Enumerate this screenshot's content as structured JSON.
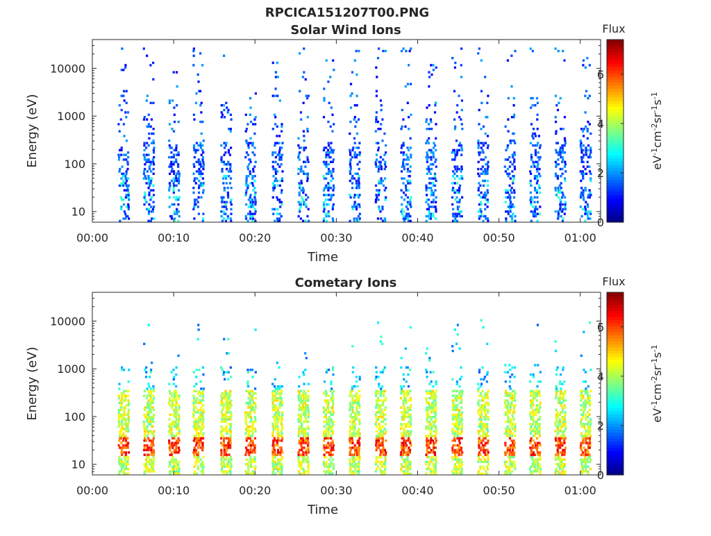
{
  "figure_title": "RPCICA151207T00.PNG",
  "chart_data": [
    {
      "type": "heatmap",
      "title": "Solar Wind Ions",
      "xlabel": "Time",
      "ylabel": "Energy (eV)",
      "x_ticks": [
        "00:00",
        "00:10",
        "00:20",
        "00:30",
        "00:40",
        "00:50",
        "01:00"
      ],
      "xlim_minutes": [
        0,
        62.5
      ],
      "y_scale": "log",
      "ylim_eV": [
        6,
        40000
      ],
      "y_ticks": [
        10,
        100,
        1000,
        10000
      ],
      "y_tick_labels": [
        "10",
        "100",
        "1000",
        "10000"
      ],
      "colorbar": {
        "label": "Flux",
        "units": "eV-1cm-2sr-1s-1",
        "ticks": [
          0,
          2,
          4,
          6
        ],
        "range": [
          0,
          7.4
        ],
        "colormap": "jet"
      },
      "sweep_times_minutes": [
        3.7,
        6.8,
        9.9,
        12.9,
        16.3,
        19.3,
        22.6,
        25.8,
        28.9,
        32.1,
        35.3,
        38.4,
        41.5,
        44.7,
        47.9,
        51.2,
        54.3,
        57.4,
        60.5
      ],
      "flux_level_typical": 1.2,
      "flux_level_peak": 2.5,
      "energy_extent_eV": [
        6,
        30000
      ]
    },
    {
      "type": "heatmap",
      "title": "Cometary Ions",
      "xlabel": "Time",
      "ylabel": "Energy (eV)",
      "x_ticks": [
        "00:00",
        "00:10",
        "00:20",
        "00:30",
        "00:40",
        "00:50",
        "01:00"
      ],
      "xlim_minutes": [
        0,
        62.5
      ],
      "y_scale": "log",
      "ylim_eV": [
        6,
        40000
      ],
      "y_ticks": [
        10,
        100,
        1000,
        10000
      ],
      "y_tick_labels": [
        "10",
        "100",
        "1000",
        "10000"
      ],
      "colorbar": {
        "label": "Flux",
        "units": "eV-1cm-2sr-1s-1",
        "ticks": [
          0,
          2,
          4,
          6
        ],
        "range": [
          0,
          7.4
        ],
        "colormap": "jet"
      },
      "sweep_times_minutes": [
        3.7,
        6.8,
        9.9,
        12.9,
        16.3,
        19.3,
        22.6,
        25.8,
        28.9,
        32.1,
        35.3,
        38.4,
        41.5,
        44.7,
        47.9,
        51.2,
        54.3,
        57.4,
        60.5
      ],
      "flux_level_typical": 4.0,
      "flux_level_peak": 6.0,
      "peak_energy_eV": [
        15,
        40
      ],
      "energy_extent_eV": [
        6,
        1000
      ]
    }
  ]
}
